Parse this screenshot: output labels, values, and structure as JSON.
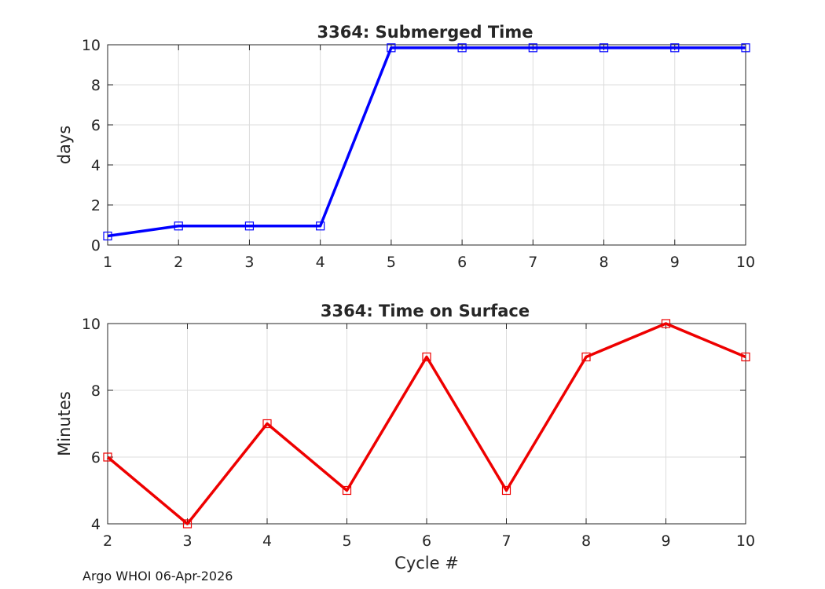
{
  "chart_data": [
    {
      "type": "line",
      "title": "3364: Submerged Time",
      "xlabel": "",
      "ylabel": "days",
      "xlim": [
        1,
        10
      ],
      "ylim": [
        0,
        10
      ],
      "xticks": [
        1,
        2,
        3,
        4,
        5,
        6,
        7,
        8,
        9,
        10
      ],
      "yticks": [
        0,
        2,
        4,
        6,
        8,
        10
      ],
      "grid": true,
      "marker": "square",
      "series": [
        {
          "color": "#0000ff",
          "x": [
            1,
            2,
            3,
            4,
            5,
            6,
            7,
            8,
            9,
            10
          ],
          "y": [
            0.45,
            0.95,
            0.95,
            0.95,
            9.85,
            9.85,
            9.85,
            9.85,
            9.85,
            9.85
          ]
        }
      ]
    },
    {
      "type": "line",
      "title": "3364: Time on Surface",
      "xlabel": "Cycle #",
      "ylabel": "Minutes",
      "xlim": [
        2,
        10
      ],
      "ylim": [
        4,
        10
      ],
      "xticks": [
        2,
        3,
        4,
        5,
        6,
        7,
        8,
        9,
        10
      ],
      "yticks": [
        4,
        6,
        8,
        10
      ],
      "grid": true,
      "marker": "square",
      "series": [
        {
          "color": "#ee0000",
          "x": [
            2,
            3,
            4,
            5,
            6,
            7,
            8,
            9,
            10
          ],
          "y": [
            6,
            4,
            7,
            5,
            9,
            5,
            9,
            10,
            9
          ]
        }
      ]
    }
  ],
  "footer": "Argo WHOI 06-Apr-2026"
}
